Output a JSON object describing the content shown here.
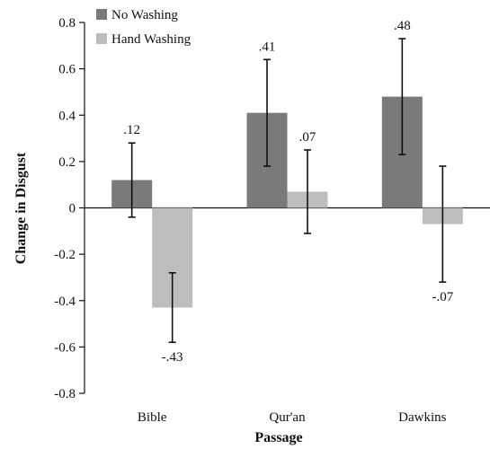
{
  "chart_data": {
    "type": "bar",
    "title": "",
    "xlabel": "Passage",
    "ylabel": "Change in Disgust",
    "categories": [
      "Bible",
      "Qur'an",
      "Dawkins"
    ],
    "ylim": [
      -0.8,
      0.8
    ],
    "yticks": [
      0.8,
      0.6,
      0.4,
      0.2,
      0,
      -0.2,
      -0.4,
      -0.6,
      -0.8
    ],
    "ytick_labels": [
      "0.8",
      "0.6",
      "0.4",
      "0.2",
      "0",
      "-0.2",
      "-0.4",
      "-0.6",
      "-0.8"
    ],
    "grid": false,
    "legend_position": "top-left",
    "series": [
      {
        "name": "No Washing",
        "color": "#7a7a7a",
        "values": [
          0.12,
          0.41,
          0.48
        ],
        "errors": [
          0.16,
          0.23,
          0.25
        ],
        "labels": [
          ".12",
          ".41",
          ".48"
        ]
      },
      {
        "name": "Hand Washing",
        "color": "#bdbdbd",
        "values": [
          -0.43,
          0.07,
          -0.07
        ],
        "errors": [
          0.15,
          0.18,
          0.25
        ],
        "labels": [
          "-.43",
          ".07",
          "-.07"
        ]
      }
    ]
  }
}
